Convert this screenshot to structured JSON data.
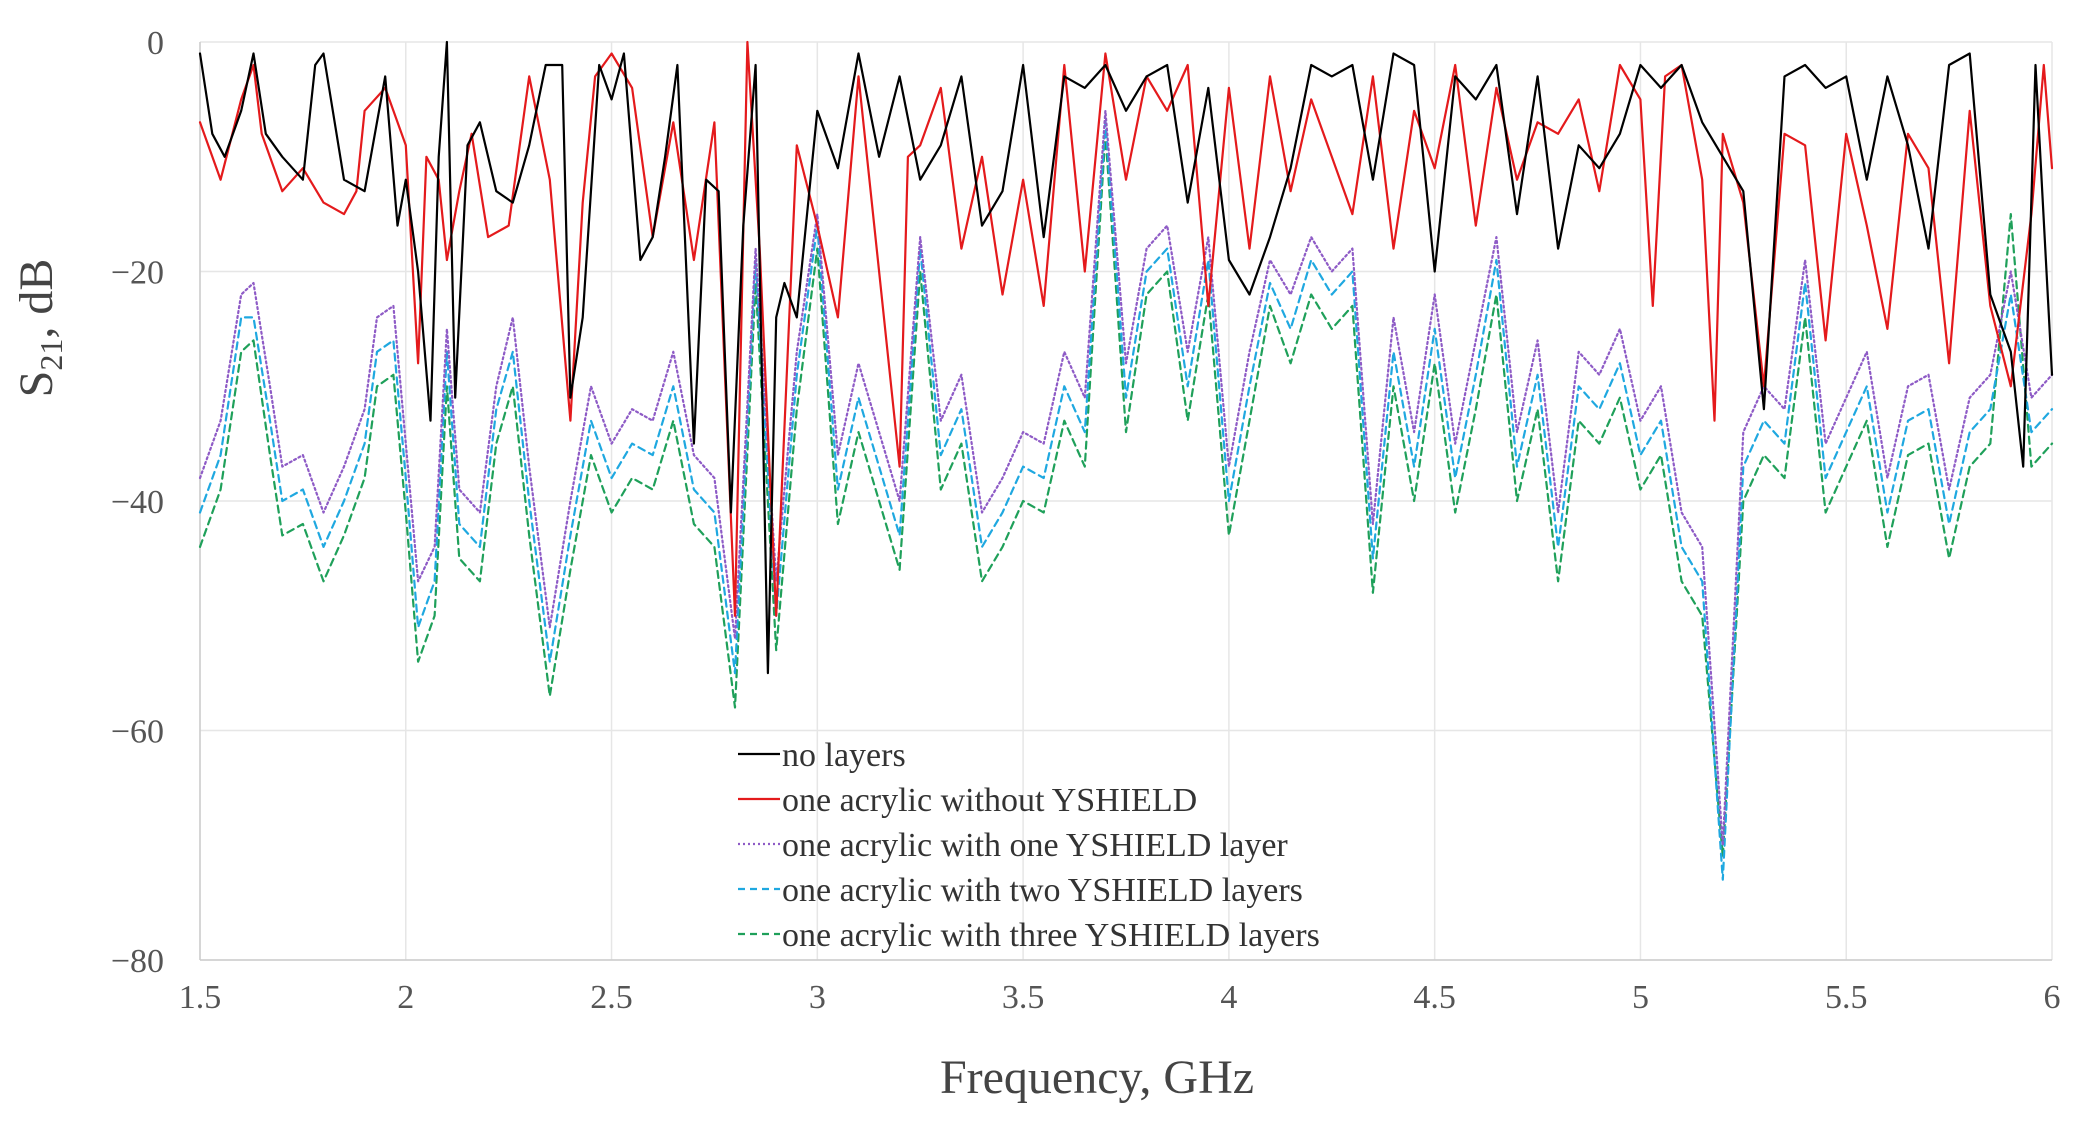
{
  "chart_data": {
    "type": "line",
    "xlabel": "Frequency, GHz",
    "ylabel": "S21, dB",
    "ylabel_main": "S",
    "ylabel_sub": "21",
    "ylabel_rest": ", dB",
    "xlim": [
      1.5,
      6
    ],
    "ylim": [
      -80,
      0
    ],
    "xticks": [
      1.5,
      2,
      2.5,
      3,
      3.5,
      4,
      4.5,
      5,
      5.5,
      6
    ],
    "xtick_labels": [
      "1.5",
      "2",
      "2.5",
      "3",
      "3.5",
      "4",
      "4.5",
      "5",
      "5.5",
      "6"
    ],
    "yticks": [
      0,
      -20,
      -40,
      -60,
      -80
    ],
    "ytick_labels": [
      "0",
      "−20",
      "−40",
      "−60",
      "−80"
    ],
    "grid": true,
    "legend_position": "center",
    "series": [
      {
        "name": "no layers",
        "color": "#000000",
        "dash": "solid",
        "x": [
          1.5,
          1.53,
          1.56,
          1.6,
          1.63,
          1.66,
          1.7,
          1.75,
          1.78,
          1.8,
          1.85,
          1.9,
          1.95,
          1.98,
          2.0,
          2.03,
          2.06,
          2.08,
          2.1,
          2.12,
          2.15,
          2.18,
          2.22,
          2.26,
          2.3,
          2.34,
          2.38,
          2.4,
          2.43,
          2.47,
          2.5,
          2.53,
          2.57,
          2.6,
          2.63,
          2.66,
          2.7,
          2.73,
          2.76,
          2.79,
          2.82,
          2.85,
          2.88,
          2.9,
          2.92,
          2.95,
          3.0,
          3.05,
          3.1,
          3.15,
          3.2,
          3.25,
          3.3,
          3.35,
          3.4,
          3.45,
          3.5,
          3.55,
          3.6,
          3.65,
          3.7,
          3.75,
          3.8,
          3.85,
          3.9,
          3.95,
          4.0,
          4.05,
          4.1,
          4.15,
          4.2,
          4.25,
          4.3,
          4.35,
          4.4,
          4.45,
          4.5,
          4.55,
          4.6,
          4.65,
          4.7,
          4.75,
          4.8,
          4.85,
          4.9,
          4.95,
          5.0,
          5.05,
          5.1,
          5.15,
          5.2,
          5.25,
          5.3,
          5.35,
          5.4,
          5.45,
          5.5,
          5.55,
          5.6,
          5.65,
          5.7,
          5.75,
          5.8,
          5.85,
          5.9,
          5.93,
          5.96,
          6.0
        ],
        "y": [
          -1,
          -8,
          -10,
          -6,
          -1,
          -8,
          -10,
          -12,
          -2,
          -1,
          -12,
          -13,
          -3,
          -16,
          -12,
          -20,
          -33,
          -10,
          0,
          -31,
          -9,
          -7,
          -13,
          -14,
          -9,
          -2,
          -2,
          -31,
          -24,
          -2,
          -5,
          -1,
          -19,
          -17,
          -10,
          -2,
          -35,
          -12,
          -13,
          -41,
          -16,
          -2,
          -55,
          -24,
          -21,
          -24,
          -6,
          -11,
          -1,
          -10,
          -3,
          -12,
          -9,
          -3,
          -16,
          -13,
          -2,
          -17,
          -3,
          -4,
          -2,
          -6,
          -3,
          -2,
          -14,
          -4,
          -19,
          -22,
          -17,
          -11,
          -2,
          -3,
          -2,
          -12,
          -1,
          -2,
          -20,
          -3,
          -5,
          -2,
          -15,
          -3,
          -18,
          -9,
          -11,
          -8,
          -2,
          -4,
          -2,
          -7,
          -10,
          -13,
          -32,
          -3,
          -2,
          -4,
          -3,
          -12,
          -3,
          -9,
          -18,
          -2,
          -1,
          -22,
          -27,
          -37,
          -2,
          -29
        ]
      },
      {
        "name": "one acrylic without YSHIELD",
        "color": "#e41a1c",
        "dash": "solid",
        "x": [
          1.5,
          1.55,
          1.6,
          1.63,
          1.65,
          1.7,
          1.75,
          1.8,
          1.85,
          1.88,
          1.9,
          1.95,
          2.0,
          2.03,
          2.05,
          2.08,
          2.1,
          2.13,
          2.16,
          2.2,
          2.25,
          2.3,
          2.35,
          2.4,
          2.43,
          2.46,
          2.5,
          2.55,
          2.6,
          2.65,
          2.7,
          2.75,
          2.8,
          2.83,
          2.86,
          2.9,
          2.95,
          3.0,
          3.05,
          3.1,
          3.15,
          3.2,
          3.22,
          3.25,
          3.3,
          3.35,
          3.4,
          3.45,
          3.5,
          3.55,
          3.6,
          3.65,
          3.7,
          3.75,
          3.8,
          3.85,
          3.9,
          3.95,
          4.0,
          4.05,
          4.1,
          4.15,
          4.2,
          4.25,
          4.3,
          4.35,
          4.4,
          4.45,
          4.5,
          4.55,
          4.6,
          4.65,
          4.7,
          4.75,
          4.8,
          4.85,
          4.9,
          4.95,
          5.0,
          5.03,
          5.06,
          5.1,
          5.15,
          5.18,
          5.2,
          5.25,
          5.3,
          5.35,
          5.4,
          5.45,
          5.5,
          5.55,
          5.6,
          5.65,
          5.7,
          5.75,
          5.8,
          5.85,
          5.9,
          5.95,
          5.98,
          6.0
        ],
        "y": [
          -7,
          -12,
          -5,
          -2,
          -8,
          -13,
          -11,
          -14,
          -15,
          -13,
          -6,
          -4,
          -9,
          -28,
          -10,
          -12,
          -19,
          -13,
          -8,
          -17,
          -16,
          -3,
          -12,
          -33,
          -14,
          -3,
          -1,
          -4,
          -17,
          -7,
          -19,
          -7,
          -50,
          0,
          -18,
          -50,
          -9,
          -16,
          -24,
          -3,
          -20,
          -37,
          -10,
          -9,
          -4,
          -18,
          -10,
          -22,
          -12,
          -23,
          -2,
          -20,
          -1,
          -12,
          -3,
          -6,
          -2,
          -23,
          -4,
          -18,
          -3,
          -13,
          -5,
          -10,
          -15,
          -3,
          -18,
          -6,
          -11,
          -2,
          -16,
          -4,
          -12,
          -7,
          -8,
          -5,
          -13,
          -2,
          -5,
          -23,
          -3,
          -2,
          -12,
          -33,
          -8,
          -14,
          -30,
          -8,
          -9,
          -26,
          -8,
          -16,
          -25,
          -8,
          -11,
          -28,
          -6,
          -23,
          -30,
          -15,
          -2,
          -11
        ]
      },
      {
        "name": "one acrylic with one YSHIELD layer",
        "color": "#8e5bc6",
        "dash": "dotted",
        "x": [
          1.5,
          1.55,
          1.6,
          1.63,
          1.67,
          1.7,
          1.75,
          1.8,
          1.85,
          1.9,
          1.93,
          1.97,
          2.0,
          2.03,
          2.07,
          2.1,
          2.13,
          2.18,
          2.22,
          2.26,
          2.3,
          2.35,
          2.4,
          2.45,
          2.5,
          2.55,
          2.6,
          2.65,
          2.7,
          2.75,
          2.8,
          2.85,
          2.9,
          2.95,
          3.0,
          3.05,
          3.1,
          3.15,
          3.2,
          3.25,
          3.3,
          3.35,
          3.4,
          3.45,
          3.5,
          3.55,
          3.6,
          3.65,
          3.7,
          3.75,
          3.8,
          3.85,
          3.9,
          3.95,
          4.0,
          4.05,
          4.1,
          4.15,
          4.2,
          4.25,
          4.3,
          4.35,
          4.4,
          4.45,
          4.5,
          4.55,
          4.6,
          4.65,
          4.7,
          4.75,
          4.8,
          4.85,
          4.9,
          4.95,
          5.0,
          5.05,
          5.1,
          5.15,
          5.2,
          5.25,
          5.3,
          5.35,
          5.4,
          5.45,
          5.5,
          5.55,
          5.6,
          5.65,
          5.7,
          5.75,
          5.8,
          5.85,
          5.9,
          5.95,
          6.0
        ],
        "y": [
          -38,
          -33,
          -22,
          -21,
          -30,
          -37,
          -36,
          -41,
          -37,
          -32,
          -24,
          -23,
          -35,
          -47,
          -44,
          -25,
          -39,
          -41,
          -30,
          -24,
          -37,
          -51,
          -40,
          -30,
          -35,
          -32,
          -33,
          -27,
          -36,
          -38,
          -52,
          -18,
          -47,
          -27,
          -15,
          -36,
          -28,
          -34,
          -40,
          -17,
          -33,
          -29,
          -41,
          -38,
          -34,
          -35,
          -27,
          -31,
          -6,
          -28,
          -18,
          -16,
          -27,
          -17,
          -37,
          -27,
          -19,
          -22,
          -17,
          -20,
          -18,
          -42,
          -24,
          -34,
          -22,
          -35,
          -26,
          -17,
          -34,
          -26,
          -41,
          -27,
          -29,
          -25,
          -33,
          -30,
          -41,
          -44,
          -70,
          -34,
          -30,
          -32,
          -19,
          -35,
          -31,
          -27,
          -38,
          -30,
          -29,
          -39,
          -31,
          -29,
          -20,
          -31,
          -29
        ]
      },
      {
        "name": "one acrylic with two YSHIELD layers",
        "color": "#1fa8e0",
        "dash": "dashed",
        "x": [
          1.5,
          1.55,
          1.6,
          1.63,
          1.67,
          1.7,
          1.75,
          1.8,
          1.85,
          1.9,
          1.93,
          1.97,
          2.0,
          2.03,
          2.07,
          2.1,
          2.13,
          2.18,
          2.22,
          2.26,
          2.3,
          2.35,
          2.4,
          2.45,
          2.5,
          2.55,
          2.6,
          2.65,
          2.7,
          2.75,
          2.8,
          2.85,
          2.9,
          2.95,
          3.0,
          3.05,
          3.1,
          3.15,
          3.2,
          3.25,
          3.3,
          3.35,
          3.4,
          3.45,
          3.5,
          3.55,
          3.6,
          3.65,
          3.7,
          3.75,
          3.8,
          3.85,
          3.9,
          3.95,
          4.0,
          4.05,
          4.1,
          4.15,
          4.2,
          4.25,
          4.3,
          4.35,
          4.4,
          4.45,
          4.5,
          4.55,
          4.6,
          4.65,
          4.7,
          4.75,
          4.8,
          4.85,
          4.9,
          4.95,
          5.0,
          5.05,
          5.1,
          5.15,
          5.2,
          5.25,
          5.3,
          5.35,
          5.4,
          5.45,
          5.5,
          5.55,
          5.6,
          5.65,
          5.7,
          5.75,
          5.8,
          5.85,
          5.9,
          5.95,
          6.0
        ],
        "y": [
          -41,
          -36,
          -24,
          -24,
          -33,
          -40,
          -39,
          -44,
          -40,
          -35,
          -27,
          -26,
          -38,
          -51,
          -47,
          -27,
          -42,
          -44,
          -32,
          -27,
          -40,
          -54,
          -43,
          -33,
          -38,
          -35,
          -36,
          -30,
          -39,
          -41,
          -55,
          -19,
          -50,
          -29,
          -16,
          -39,
          -31,
          -37,
          -43,
          -18,
          -36,
          -32,
          -44,
          -41,
          -37,
          -38,
          -30,
          -34,
          -7,
          -31,
          -20,
          -18,
          -30,
          -19,
          -40,
          -30,
          -21,
          -25,
          -19,
          -22,
          -20,
          -45,
          -27,
          -37,
          -25,
          -38,
          -29,
          -19,
          -37,
          -29,
          -44,
          -30,
          -32,
          -28,
          -36,
          -33,
          -44,
          -47,
          -73,
          -37,
          -33,
          -35,
          -21,
          -38,
          -34,
          -30,
          -41,
          -33,
          -32,
          -42,
          -34,
          -32,
          -22,
          -34,
          -32
        ]
      },
      {
        "name": "one acrylic with three YSHIELD layers",
        "color": "#1fa05a",
        "dash": "dashed",
        "x": [
          1.5,
          1.55,
          1.6,
          1.63,
          1.67,
          1.7,
          1.75,
          1.8,
          1.85,
          1.9,
          1.93,
          1.97,
          2.0,
          2.03,
          2.07,
          2.1,
          2.13,
          2.18,
          2.22,
          2.26,
          2.3,
          2.35,
          2.4,
          2.45,
          2.5,
          2.55,
          2.6,
          2.65,
          2.7,
          2.75,
          2.8,
          2.85,
          2.9,
          2.95,
          3.0,
          3.05,
          3.1,
          3.15,
          3.2,
          3.25,
          3.3,
          3.35,
          3.4,
          3.45,
          3.5,
          3.55,
          3.6,
          3.65,
          3.7,
          3.75,
          3.8,
          3.85,
          3.9,
          3.95,
          4.0,
          4.05,
          4.1,
          4.15,
          4.2,
          4.25,
          4.3,
          4.35,
          4.4,
          4.45,
          4.5,
          4.55,
          4.6,
          4.65,
          4.7,
          4.75,
          4.8,
          4.85,
          4.9,
          4.95,
          5.0,
          5.05,
          5.1,
          5.15,
          5.2,
          5.25,
          5.3,
          5.35,
          5.4,
          5.45,
          5.5,
          5.55,
          5.6,
          5.65,
          5.7,
          5.75,
          5.8,
          5.85,
          5.9,
          5.95,
          6.0
        ],
        "y": [
          -44,
          -39,
          -27,
          -26,
          -36,
          -43,
          -42,
          -47,
          -43,
          -38,
          -30,
          -29,
          -41,
          -54,
          -50,
          -30,
          -45,
          -47,
          -35,
          -30,
          -43,
          -57,
          -46,
          -36,
          -41,
          -38,
          -39,
          -33,
          -42,
          -44,
          -58,
          -21,
          -53,
          -32,
          -18,
          -42,
          -34,
          -40,
          -46,
          -20,
          -39,
          -35,
          -47,
          -44,
          -40,
          -41,
          -33,
          -37,
          -8,
          -34,
          -22,
          -20,
          -33,
          -22,
          -43,
          -33,
          -23,
          -28,
          -22,
          -25,
          -23,
          -48,
          -30,
          -40,
          -28,
          -41,
          -32,
          -22,
          -40,
          -32,
          -47,
          -33,
          -35,
          -31,
          -39,
          -36,
          -47,
          -50,
          -71,
          -40,
          -36,
          -38,
          -24,
          -41,
          -37,
          -33,
          -44,
          -36,
          -35,
          -45,
          -37,
          -35,
          -15,
          -37,
          -35
        ]
      }
    ]
  }
}
